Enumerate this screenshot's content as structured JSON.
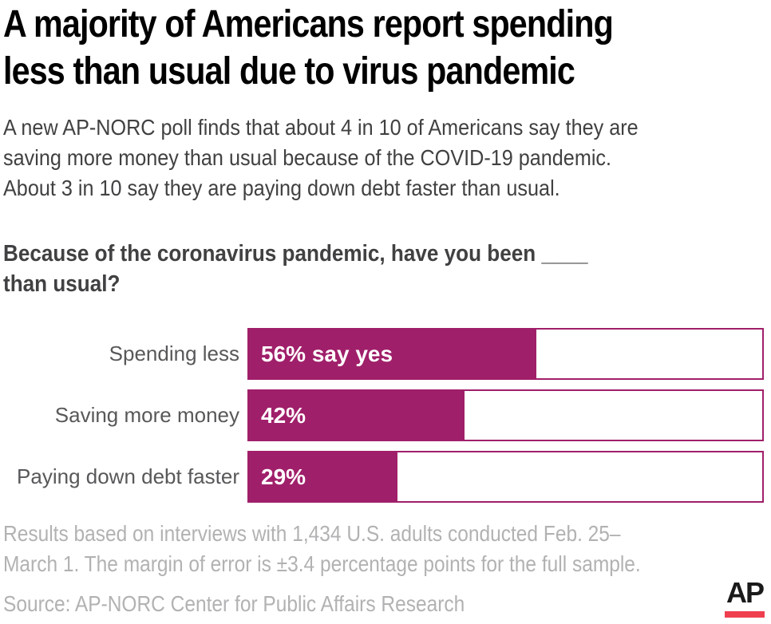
{
  "title": "A majority of Americans report spending\nless than usual due to virus pandemic",
  "subtitle": "A new AP-NORC poll finds that about 4 in 10 of Americans say they are\nsaving more money than usual because of the COVID-19 pandemic.\nAbout 3 in 10 say they are paying down debt faster than usual.",
  "question": "Because of the coronavirus pandemic, have you been ____\nthan usual?",
  "bars": [
    {
      "label": "Spending less",
      "value": 56,
      "value_label": "56% say yes"
    },
    {
      "label": "Saving more money",
      "value": 42,
      "value_label": "42%"
    },
    {
      "label": "Paying down debt faster",
      "value": 29,
      "value_label": "29%"
    }
  ],
  "chart_data": {
    "type": "bar",
    "orientation": "horizontal",
    "title": "Because of the coronavirus pandemic, have you been ____ than usual?",
    "categories": [
      "Spending less",
      "Saving more money",
      "Paying down debt faster"
    ],
    "values": [
      56,
      42,
      29
    ],
    "value_labels": [
      "56% say yes",
      "42%",
      "29%"
    ],
    "xlim": [
      0,
      100
    ],
    "grid": false,
    "legend": false,
    "bar_color": "#A01F6A",
    "track_fill": "#FFFFFF",
    "track_border_color": "#A01F6A"
  },
  "footnote": "Results based on interviews with 1,434 U.S. adults conducted Feb. 25–\nMarch 1. The margin of error is ±3.4 percentage points for the full sample.",
  "source": "Source: AP-NORC Center for Public Affairs Research",
  "logo": {
    "text": "AP",
    "underline_color": "#EF3F4F"
  },
  "colors": {
    "bar": "#A01F6A",
    "title_text": "#000000",
    "body_text": "#414042",
    "label_text": "#58585b",
    "muted_text": "#b2b2b4",
    "ap_red": "#EF3F4F",
    "background": "#FFFFFF"
  }
}
